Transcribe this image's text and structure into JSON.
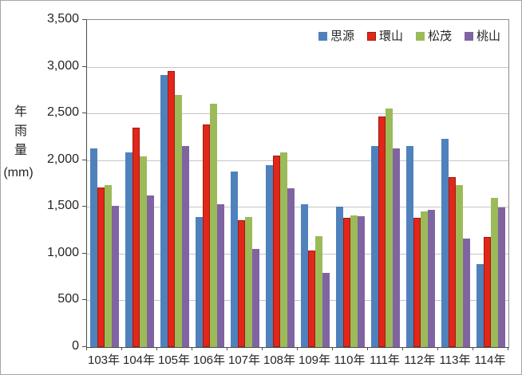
{
  "chart_data": {
    "type": "bar",
    "title": "",
    "ylabel_vertical": "年雨量",
    "ylabel_unit": "(mm)",
    "xlabel": "",
    "ylim": [
      0,
      3500
    ],
    "ytick_step": 500,
    "y_ticks": [
      "0",
      "500",
      "1,000",
      "1,500",
      "2,000",
      "2,500",
      "3,000",
      "3,500"
    ],
    "grid": true,
    "legend_position": "top-right-inside",
    "categories": [
      "103年",
      "104年",
      "105年",
      "106年",
      "107年",
      "108年",
      "109年",
      "110年",
      "111年",
      "112年",
      "113年",
      "114年"
    ],
    "series": [
      {
        "name": "思源",
        "color": "#4F81BD",
        "values": [
          2130,
          2080,
          2910,
          1390,
          1880,
          1950,
          1530,
          1500,
          2150,
          2150,
          2230,
          890
        ]
      },
      {
        "name": "環山",
        "color": "#E3261A",
        "border_color": "#9E1B10",
        "values": [
          1710,
          2350,
          2950,
          2380,
          1360,
          2050,
          1030,
          1380,
          2470,
          1380,
          1820,
          1180
        ]
      },
      {
        "name": "松茂",
        "color": "#9BBB59",
        "values": [
          1730,
          2040,
          2700,
          2600,
          1390,
          2080,
          1190,
          1410,
          2550,
          1450,
          1730,
          1600
        ]
      },
      {
        "name": "桃山",
        "color": "#8064A2",
        "values": [
          1510,
          1620,
          2150,
          1530,
          1050,
          1700,
          790,
          1400,
          2130,
          1470,
          1160,
          1490
        ]
      }
    ]
  }
}
